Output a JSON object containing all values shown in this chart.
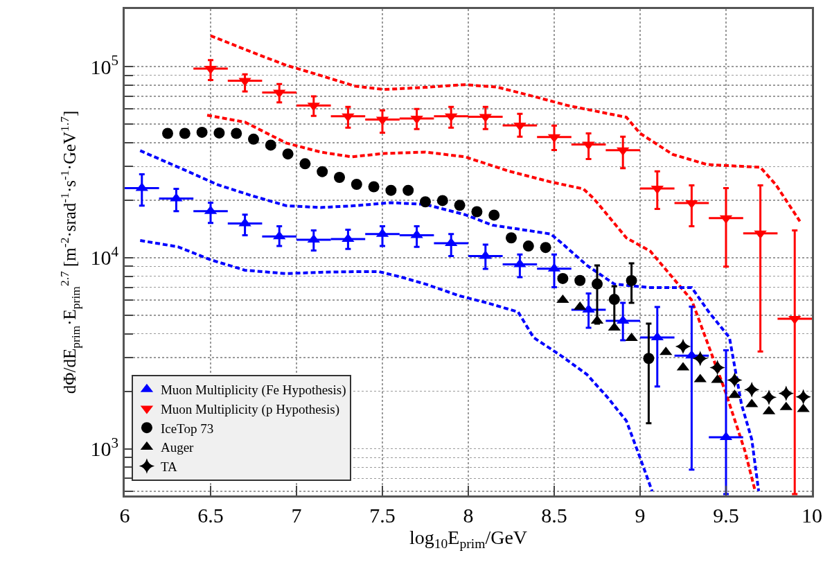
{
  "chart_data": {
    "type": "scatter",
    "xlabel": "log$_{10}$E$_{prim}$/GeV",
    "ylabel": "dΦ/dE$_{prim}$·E$_{prim}$$^{2.7}$ [m$^{-2}$·srad$^{-1}$·s$^{-1}$·GeV$^{1.7}$]",
    "xlim": [
      6,
      10
    ],
    "xticks": [
      6,
      6.5,
      7,
      7.5,
      8,
      8.5,
      9,
      9.5,
      10
    ],
    "ylim": [
      570,
      200000
    ],
    "yticks": [
      {
        "value": 600,
        "label": null
      },
      {
        "value": 700,
        "label": null
      },
      {
        "value": 800,
        "label": null
      },
      {
        "value": 900,
        "label": null
      },
      {
        "value": 1000,
        "label": "10$^{3}$"
      },
      {
        "value": 2000,
        "label": null
      },
      {
        "value": 3000,
        "label": null
      },
      {
        "value": 4000,
        "label": null
      },
      {
        "value": 5000,
        "label": null
      },
      {
        "value": 6000,
        "label": null
      },
      {
        "value": 7000,
        "label": null
      },
      {
        "value": 8000,
        "label": null
      },
      {
        "value": 9000,
        "label": null
      },
      {
        "value": 10000,
        "label": "10$^{4}$"
      },
      {
        "value": 20000,
        "label": null
      },
      {
        "value": 30000,
        "label": null
      },
      {
        "value": 40000,
        "label": null
      },
      {
        "value": 50000,
        "label": null
      },
      {
        "value": 60000,
        "label": null
      },
      {
        "value": 70000,
        "label": null
      },
      {
        "value": 80000,
        "label": null
      },
      {
        "value": 90000,
        "label": null
      },
      {
        "value": 100000,
        "label": "10$^{5}$"
      },
      {
        "value": 200000,
        "label": null
      }
    ],
    "log": "y",
    "grid": true,
    "legend": "bottom left",
    "series": [
      {
        "name": "Muon Multiplicity (Fe Hypothesis)",
        "marker": "triangle",
        "color": "#0000ff",
        "x": [
          6.1,
          6.3,
          6.5,
          6.7,
          6.9,
          7.1,
          7.3,
          7.5,
          7.7,
          7.9,
          8.1,
          8.3,
          8.5,
          8.7,
          8.9,
          9.1,
          9.3,
          9.5
        ],
        "values": [
          23100,
          20400,
          17500,
          15100,
          12900,
          12400,
          12500,
          13300,
          13100,
          11900,
          10200,
          9220,
          8750,
          5340,
          4670,
          3820,
          3070,
          1150
        ],
        "errors": [
          [
            18700,
            27300
          ],
          [
            17500,
            22900
          ],
          [
            15200,
            19400
          ],
          [
            13100,
            16800
          ],
          [
            11500,
            14600
          ],
          [
            10900,
            13900
          ],
          [
            11100,
            14000
          ],
          [
            11500,
            14600
          ],
          [
            11400,
            14600
          ],
          [
            10200,
            13300
          ],
          [
            8740,
            11700
          ],
          [
            7910,
            10400
          ],
          [
            7000,
            10400
          ],
          [
            4300,
            6500
          ],
          [
            3700,
            5800
          ],
          [
            2120,
            5520
          ],
          [
            778,
            5540
          ],
          [
            580,
            3280
          ]
        ],
        "xerrors": [
          0.1,
          0.1,
          0.1,
          0.1,
          0.1,
          0.1,
          0.1,
          0.1,
          0.1,
          0.1,
          0.1,
          0.1,
          0.1,
          0.1,
          0.1,
          0.1,
          0.1,
          0.1
        ]
      },
      {
        "name": "Muon Multiplicity (p Hypothesis)",
        "marker": "triangle-down",
        "color": "#ff0000",
        "x": [
          6.5,
          6.7,
          6.9,
          7.1,
          7.3,
          7.5,
          7.7,
          7.9,
          8.1,
          8.3,
          8.5,
          8.7,
          8.9,
          9.1,
          9.3,
          9.5,
          9.7,
          9.9
        ],
        "values": [
          97500,
          84300,
          73100,
          62600,
          55000,
          52800,
          53500,
          55000,
          54600,
          49200,
          42800,
          39100,
          36500,
          23000,
          19300,
          16100,
          13400,
          4790
        ],
        "errors": [
          [
            85000,
            108000
          ],
          [
            74000,
            91000
          ],
          [
            65000,
            81000
          ],
          [
            55200,
            69800
          ],
          [
            47900,
            61500
          ],
          [
            45100,
            59000
          ],
          [
            47100,
            60000
          ],
          [
            47900,
            61500
          ],
          [
            47100,
            61500
          ],
          [
            43000,
            56600
          ],
          [
            36600,
            49100
          ],
          [
            32800,
            44700
          ],
          [
            29400,
            43000
          ],
          [
            18000,
            28300
          ],
          [
            14600,
            23900
          ],
          [
            8970,
            23100
          ],
          [
            3230,
            23900
          ],
          [
            580,
            13900
          ]
        ],
        "xerrors": [
          0.1,
          0.1,
          0.1,
          0.1,
          0.1,
          0.1,
          0.1,
          0.1,
          0.1,
          0.1,
          0.1,
          0.1,
          0.1,
          0.1,
          0.1,
          0.1,
          0.1,
          0.1
        ]
      },
      {
        "name": "IceTop 73",
        "marker": "circle",
        "color": "#000000",
        "x": [
          6.25,
          6.35,
          6.45,
          6.55,
          6.65,
          6.75,
          6.85,
          6.95,
          7.05,
          7.15,
          7.25,
          7.35,
          7.45,
          7.55,
          7.65,
          7.75,
          7.85,
          7.95,
          8.05,
          8.15,
          8.25,
          8.35,
          8.45,
          8.55,
          8.65,
          8.75,
          8.85,
          8.95,
          9.05
        ],
        "values": [
          44700,
          44700,
          45300,
          44900,
          44700,
          41700,
          38800,
          34900,
          31000,
          28200,
          26300,
          24200,
          23500,
          22500,
          22500,
          19600,
          19900,
          18800,
          17400,
          16700,
          12700,
          11500,
          11300,
          7780,
          7600,
          7280,
          6050,
          7590,
          2970
        ],
        "errors": [
          null,
          null,
          null,
          null,
          null,
          null,
          null,
          null,
          null,
          null,
          null,
          null,
          null,
          null,
          null,
          null,
          null,
          null,
          null,
          null,
          null,
          null,
          null,
          null,
          null,
          [
            4520,
            9120
          ],
          [
            4300,
            7090
          ],
          [
            5800,
            9350
          ],
          [
            1360,
            4520
          ]
        ]
      },
      {
        "name": "Auger",
        "marker": "triangle",
        "color": "#000000",
        "x": [
          8.55,
          8.65,
          8.75,
          8.85,
          8.95,
          9.05,
          9.15,
          9.25,
          9.35,
          9.45,
          9.55,
          9.65,
          9.75,
          9.85,
          9.95
        ],
        "values": [
          6000,
          5520,
          4670,
          4300,
          3790,
          null,
          3200,
          2660,
          2310,
          2290,
          1910,
          1710,
          1570,
          1650,
          1610
        ]
      },
      {
        "name": "TA",
        "marker": "star",
        "color": "#000000",
        "x": [
          9.25,
          9.35,
          9.45,
          9.55,
          9.65,
          9.75,
          9.85,
          9.95
        ],
        "values": [
          3430,
          2970,
          2660,
          2290,
          2040,
          1860,
          1950,
          1870
        ]
      },
      {
        "type": "line",
        "line_style": "dashed",
        "color": "#ff0000",
        "x": [
          6.5,
          6.75,
          6.94,
          7.14,
          7.34,
          7.51,
          7.75,
          7.98,
          8.17,
          8.38,
          8.58,
          8.78,
          8.92,
          9.0,
          9.19,
          9.39,
          9.7,
          9.79,
          9.93
        ],
        "values": [
          145000,
          118000,
          101600,
          89800,
          79000,
          75900,
          77800,
          80400,
          78000,
          69800,
          62500,
          57500,
          54300,
          44700,
          34700,
          30700,
          29700,
          24100,
          15500
        ]
      },
      {
        "type": "line",
        "line_style": "dashed",
        "color": "#ff0000",
        "x": [
          6.48,
          6.7,
          6.94,
          7.14,
          7.32,
          7.51,
          7.75,
          7.98,
          8.24,
          8.48,
          8.67,
          8.73,
          8.92,
          9.06,
          9.3,
          9.4,
          9.5,
          9.61,
          9.67
        ],
        "values": [
          55600,
          51200,
          39800,
          35700,
          33700,
          35100,
          35700,
          33700,
          28300,
          24900,
          22900,
          20400,
          12700,
          10800,
          6000,
          3430,
          1950,
          975,
          600
        ]
      },
      {
        "type": "line",
        "line_style": "dashed",
        "color": "#0000ff",
        "x": [
          6.09,
          6.34,
          6.54,
          6.74,
          6.94,
          7.14,
          7.34,
          7.55,
          7.75,
          7.98,
          8.14,
          8.48,
          8.54,
          8.69,
          8.85,
          9.05,
          9.3,
          9.4,
          9.52,
          9.59,
          9.65,
          9.69
        ],
        "values": [
          36300,
          29000,
          24100,
          21100,
          18700,
          18300,
          18700,
          19400,
          19000,
          16800,
          14800,
          13300,
          12000,
          9120,
          7280,
          6980,
          6980,
          5200,
          3820,
          1710,
          1120,
          600
        ]
      },
      {
        "type": "line",
        "line_style": "dashed",
        "color": "#0000ff",
        "x": [
          6.09,
          6.31,
          6.5,
          6.7,
          6.94,
          7.14,
          7.34,
          7.48,
          7.61,
          7.75,
          7.95,
          8.11,
          8.29,
          8.38,
          8.54,
          8.69,
          8.81,
          8.92,
          9.0,
          9.07
        ],
        "values": [
          12300,
          11400,
          9750,
          8600,
          8250,
          8390,
          8450,
          8450,
          7910,
          7280,
          6310,
          5800,
          5200,
          3820,
          3070,
          2450,
          1860,
          1400,
          897,
          600
        ]
      }
    ]
  }
}
